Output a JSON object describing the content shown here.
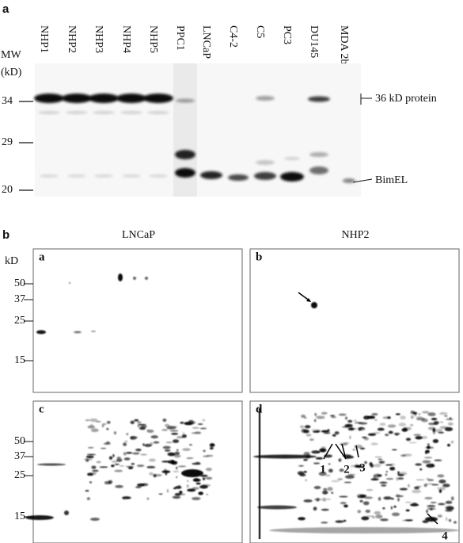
{
  "panel_a": {
    "label": "a",
    "mw_title": "MW",
    "mw_unit": "(kD)",
    "lanes": [
      "NHP1",
      "NHP2",
      "NHP3",
      "NHP4",
      "NHP5",
      "PPC1",
      "LNCaP",
      "C4-2",
      "C5",
      "PC3",
      "DU145",
      "MDA 2b"
    ],
    "mw_markers": [
      34,
      29,
      20
    ],
    "annotations": [
      "36 kD protein",
      "BimEL"
    ]
  },
  "panel_b": {
    "label": "b",
    "columns": [
      "LNCaP",
      "NHP2"
    ],
    "kd_label": "kD",
    "gels": [
      {
        "label": "a",
        "markers": [
          50,
          37,
          25,
          15
        ]
      },
      {
        "label": "b"
      },
      {
        "label": "c",
        "markers": [
          50,
          37,
          25,
          15
        ]
      },
      {
        "label": "d"
      }
    ],
    "spot_numbers": [
      "1",
      "2",
      "3",
      "4"
    ]
  }
}
